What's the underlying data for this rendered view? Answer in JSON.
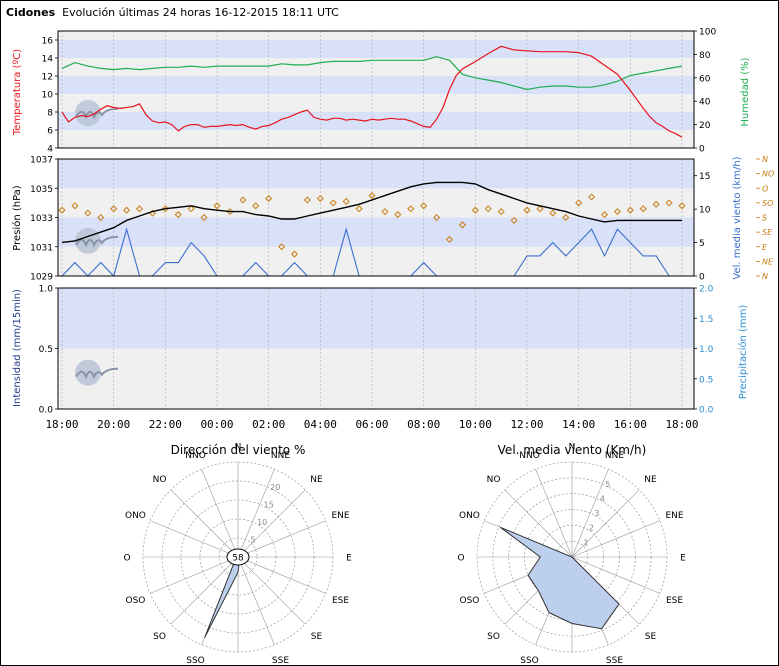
{
  "header": {
    "station": "Cidones",
    "title": "Evolución últimas 24 horas 16-12-2015 18:11 UTC"
  },
  "colors": {
    "temperature": "#e8141c",
    "humidity": "#1fad4f",
    "pressure": "#000000",
    "wind_speed": "#3b6fcf",
    "wind_dir": "#c87c10",
    "band_blue": "#d9e1f8",
    "band_gray": "#f0f0f0",
    "intensity": "#233c8c",
    "precipitation": "#2d8fd4",
    "rose_fill": "#bcd0ee"
  },
  "x_axis": {
    "labels": [
      "18:00",
      "20:00",
      "22:00",
      "00:00",
      "02:00",
      "04:00",
      "06:00",
      "08:00",
      "10:00",
      "12:00",
      "14:00",
      "16:00",
      "18:00"
    ]
  },
  "chart_data": [
    {
      "type": "line",
      "title": "",
      "ylabel": "Temperatura (ºC)",
      "y2label": "Humedad (%)",
      "ylim": [
        4,
        17
      ],
      "y2lim": [
        0,
        100
      ],
      "yticks": [
        "4",
        "6",
        "8",
        "10",
        "12",
        "14",
        "16"
      ],
      "y2ticks": [
        "0",
        "20",
        "40",
        "60",
        "80",
        "100"
      ],
      "x_hours": "hours since 18:00",
      "series": [
        {
          "name": "Temperatura",
          "axis": "left",
          "x": [
            0,
            0.25,
            0.5,
            0.75,
            1,
            1.25,
            1.5,
            1.75,
            2,
            2.25,
            2.5,
            2.75,
            3,
            3.25,
            3.5,
            3.75,
            4,
            4.25,
            4.5,
            4.75,
            5,
            5.25,
            5.5,
            5.75,
            6,
            6.25,
            6.5,
            6.75,
            7,
            7.25,
            7.5,
            7.75,
            8,
            8.25,
            8.5,
            8.75,
            9,
            9.25,
            9.5,
            9.75,
            10,
            10.25,
            10.5,
            10.75,
            11,
            11.25,
            11.5,
            11.75,
            12,
            12.25,
            12.5,
            12.75,
            13,
            13.25,
            13.5,
            13.75,
            14,
            14.25,
            14.5,
            14.75,
            15,
            15.25,
            15.5,
            15.75,
            16,
            16.5,
            17,
            17.5,
            18,
            18.5,
            19,
            19.5,
            20,
            20.5,
            21,
            21.5,
            22,
            22.5,
            22.75,
            23,
            23.25,
            23.5,
            23.75,
            24
          ],
          "values": [
            8,
            6.9,
            7.4,
            7.6,
            7.5,
            7.8,
            8.3,
            8.7,
            8.5,
            8.4,
            8.5,
            8.6,
            8.9,
            7.7,
            7.0,
            6.8,
            6.9,
            6.6,
            5.9,
            6.4,
            6.6,
            6.6,
            6.3,
            6.4,
            6.4,
            6.5,
            6.6,
            6.5,
            6.6,
            6.3,
            6.1,
            6.4,
            6.5,
            6.8,
            7.2,
            7.4,
            7.7,
            8.0,
            8.2,
            7.4,
            7.2,
            7.1,
            7.3,
            7.3,
            7.1,
            7.2,
            7.1,
            7.0,
            7.2,
            7.1,
            7.2,
            7.3,
            7.2,
            7.2,
            7.0,
            6.7,
            6.4,
            6.3,
            7.2,
            8.5,
            10.5,
            12.0,
            12.8,
            13.2,
            13.6,
            14.5,
            15.3,
            14.9,
            14.8,
            14.7,
            14.7,
            14.7,
            14.6,
            14.2,
            13.2,
            12.2,
            10.4,
            8.4,
            7.5,
            6.8,
            6.4,
            5.9,
            5.6,
            5.2
          ]
        },
        {
          "name": "Humedad",
          "axis": "right",
          "x": [
            0,
            0.5,
            1,
            1.5,
            2,
            2.5,
            3,
            3.5,
            4,
            4.5,
            5,
            5.5,
            6,
            6.5,
            7,
            7.5,
            8,
            8.5,
            9,
            9.5,
            10,
            10.5,
            11,
            11.5,
            12,
            12.5,
            13,
            13.5,
            14,
            14.5,
            15,
            15.5,
            16,
            16.5,
            17,
            17.5,
            18,
            18.5,
            19,
            19.5,
            20,
            20.5,
            21,
            21.5,
            22,
            22.5,
            23,
            23.5,
            24
          ],
          "values": [
            68,
            73,
            70,
            68,
            67,
            68,
            67,
            68,
            69,
            69,
            70,
            69,
            70,
            70,
            70,
            70,
            70,
            72,
            71,
            71,
            73,
            74,
            74,
            74,
            75,
            75,
            75,
            75,
            75,
            78,
            75,
            63,
            60,
            58,
            56,
            53,
            50,
            52,
            53,
            53,
            52,
            52,
            54,
            57,
            62,
            64,
            66,
            68,
            70
          ]
        }
      ]
    },
    {
      "type": "line",
      "title": "",
      "ylabel": "Presión (hPa)",
      "y2label": "Vel. media viento (km/h)",
      "ylim": [
        1029,
        1037
      ],
      "y2lim": [
        0,
        17.5
      ],
      "yticks": [
        "1029",
        "1031",
        "1033",
        "1035",
        "1037"
      ],
      "y2ticks": [
        "0",
        "5",
        "10",
        "15"
      ],
      "dir_labels": [
        "N",
        "NE",
        "E",
        "SE",
        "S",
        "SO",
        "O",
        "NO",
        "N"
      ],
      "series": [
        {
          "name": "Presión",
          "axis": "left",
          "x": [
            0,
            0.5,
            1,
            1.5,
            2,
            2.5,
            3,
            3.5,
            4,
            4.5,
            5,
            5.5,
            6,
            6.5,
            7,
            7.5,
            8,
            8.5,
            9,
            9.5,
            10,
            10.5,
            11,
            11.5,
            12,
            12.5,
            13,
            13.5,
            14,
            14.5,
            15,
            15.5,
            16,
            16.5,
            17,
            17.5,
            18,
            18.5,
            19,
            19.5,
            20,
            20.5,
            21,
            21.5,
            22,
            22.5,
            23,
            23.5,
            24
          ],
          "values": [
            1031.3,
            1031.4,
            1031.7,
            1032.0,
            1032.3,
            1032.8,
            1033.1,
            1033.4,
            1033.6,
            1033.7,
            1033.8,
            1033.6,
            1033.5,
            1033.4,
            1033.4,
            1033.2,
            1033.1,
            1032.9,
            1032.9,
            1033.1,
            1033.3,
            1033.5,
            1033.7,
            1033.9,
            1034.2,
            1034.5,
            1034.8,
            1035.1,
            1035.3,
            1035.4,
            1035.4,
            1035.4,
            1035.3,
            1034.9,
            1034.6,
            1034.3,
            1034.0,
            1033.8,
            1033.6,
            1033.4,
            1033.1,
            1032.9,
            1032.7,
            1032.8,
            1032.8,
            1032.8,
            1032.8,
            1032.8,
            1032.8
          ]
        },
        {
          "name": "Vel. media viento",
          "axis": "right",
          "x": [
            0,
            0.5,
            1,
            1.5,
            2,
            2.5,
            3,
            3.5,
            4,
            4.5,
            5,
            5.5,
            6,
            6.5,
            7,
            7.5,
            8,
            8.5,
            9,
            9.5,
            10,
            10.5,
            11,
            11.5,
            12,
            12.5,
            13,
            13.5,
            14,
            14.5,
            15,
            15.5,
            16,
            16.5,
            17,
            17.5,
            18,
            18.5,
            19,
            19.5,
            20,
            20.5,
            21,
            21.5,
            22,
            22.5,
            23,
            23.5,
            24
          ],
          "values": [
            0,
            2,
            0,
            2,
            0,
            7,
            0,
            0,
            2,
            2,
            5,
            3,
            0,
            0,
            0,
            2,
            0,
            0,
            2,
            0,
            0,
            0,
            7,
            0,
            0,
            0,
            0,
            0,
            2,
            0,
            0,
            0,
            0,
            0,
            0,
            0,
            3,
            3,
            5,
            3,
            5,
            7,
            3,
            7,
            5,
            3,
            3,
            0,
            0
          ]
        },
        {
          "name": "Dirección",
          "axis": "direction",
          "x": [
            0,
            0.5,
            1,
            1.5,
            2,
            2.5,
            3,
            3.5,
            4,
            4.5,
            5,
            5.5,
            6,
            6.5,
            7,
            7.5,
            8,
            8.5,
            9,
            9.5,
            10,
            10.5,
            11,
            11.5,
            12,
            12.5,
            13,
            13.5,
            14,
            14.5,
            15,
            15.5,
            16,
            16.5,
            17,
            17.5,
            18,
            18.5,
            19,
            19.5,
            20,
            20.5,
            21,
            21.5,
            22,
            22.5,
            23,
            23.5,
            24
          ],
          "values": [
            4.5,
            4.8,
            4.3,
            4.0,
            4.6,
            4.5,
            4.6,
            4.3,
            4.6,
            4.2,
            4.6,
            4.0,
            4.8,
            4.4,
            5.2,
            4.8,
            5.3,
            2.0,
            1.5,
            5.2,
            5.3,
            5.0,
            5.1,
            4.6,
            5.5,
            4.4,
            4.2,
            4.6,
            4.8,
            4.0,
            2.5,
            3.5,
            4.5,
            4.6,
            4.4,
            3.8,
            4.5,
            4.6,
            4.3,
            4.0,
            5.0,
            5.4,
            4.2,
            4.4,
            4.5,
            4.6,
            4.9,
            5.0,
            4.8
          ]
        }
      ]
    },
    {
      "type": "area",
      "title": "",
      "ylabel": "Intensidad (mm/15min)",
      "y2label": "Precipitación (mm)",
      "ylim": [
        0,
        1.0
      ],
      "y2lim": [
        0,
        2.0
      ],
      "yticks": [
        "0.0",
        "0.5",
        "1.0"
      ],
      "y2ticks": [
        "0.0",
        "0.5",
        "1.0",
        "1.5",
        "2.0"
      ],
      "series": []
    },
    {
      "type": "radar",
      "title": "Dirección del viento %",
      "center_value": "58",
      "directions": [
        "N",
        "NNE",
        "NE",
        "ENE",
        "E",
        "ESE",
        "SE",
        "SSE",
        "S",
        "SSO",
        "SO",
        "OSO",
        "O",
        "ONO",
        "NO",
        "NNO"
      ],
      "ring_labels": [
        "5",
        "10",
        "15",
        "20"
      ],
      "rmax": 25,
      "values": [
        0,
        0,
        0,
        0,
        0,
        0,
        0,
        1,
        4,
        23,
        1,
        0,
        0,
        0,
        0,
        0
      ]
    },
    {
      "type": "radar",
      "title": "Vel. media viento (Km/h)",
      "directions": [
        "N",
        "NNE",
        "NE",
        "ENE",
        "E",
        "ESE",
        "SE",
        "SSE",
        "S",
        "SSO",
        "SO",
        "OSO",
        "O",
        "ONO",
        "NO",
        "NNO"
      ],
      "ring_labels": [
        "1",
        "2",
        "3",
        "4",
        "5"
      ],
      "rmax": 6,
      "values": [
        0,
        0,
        0,
        0,
        0,
        0,
        4.2,
        4.9,
        4.2,
        3.8,
        3.0,
        3.0,
        2.0,
        4.9,
        0,
        0
      ]
    }
  ]
}
